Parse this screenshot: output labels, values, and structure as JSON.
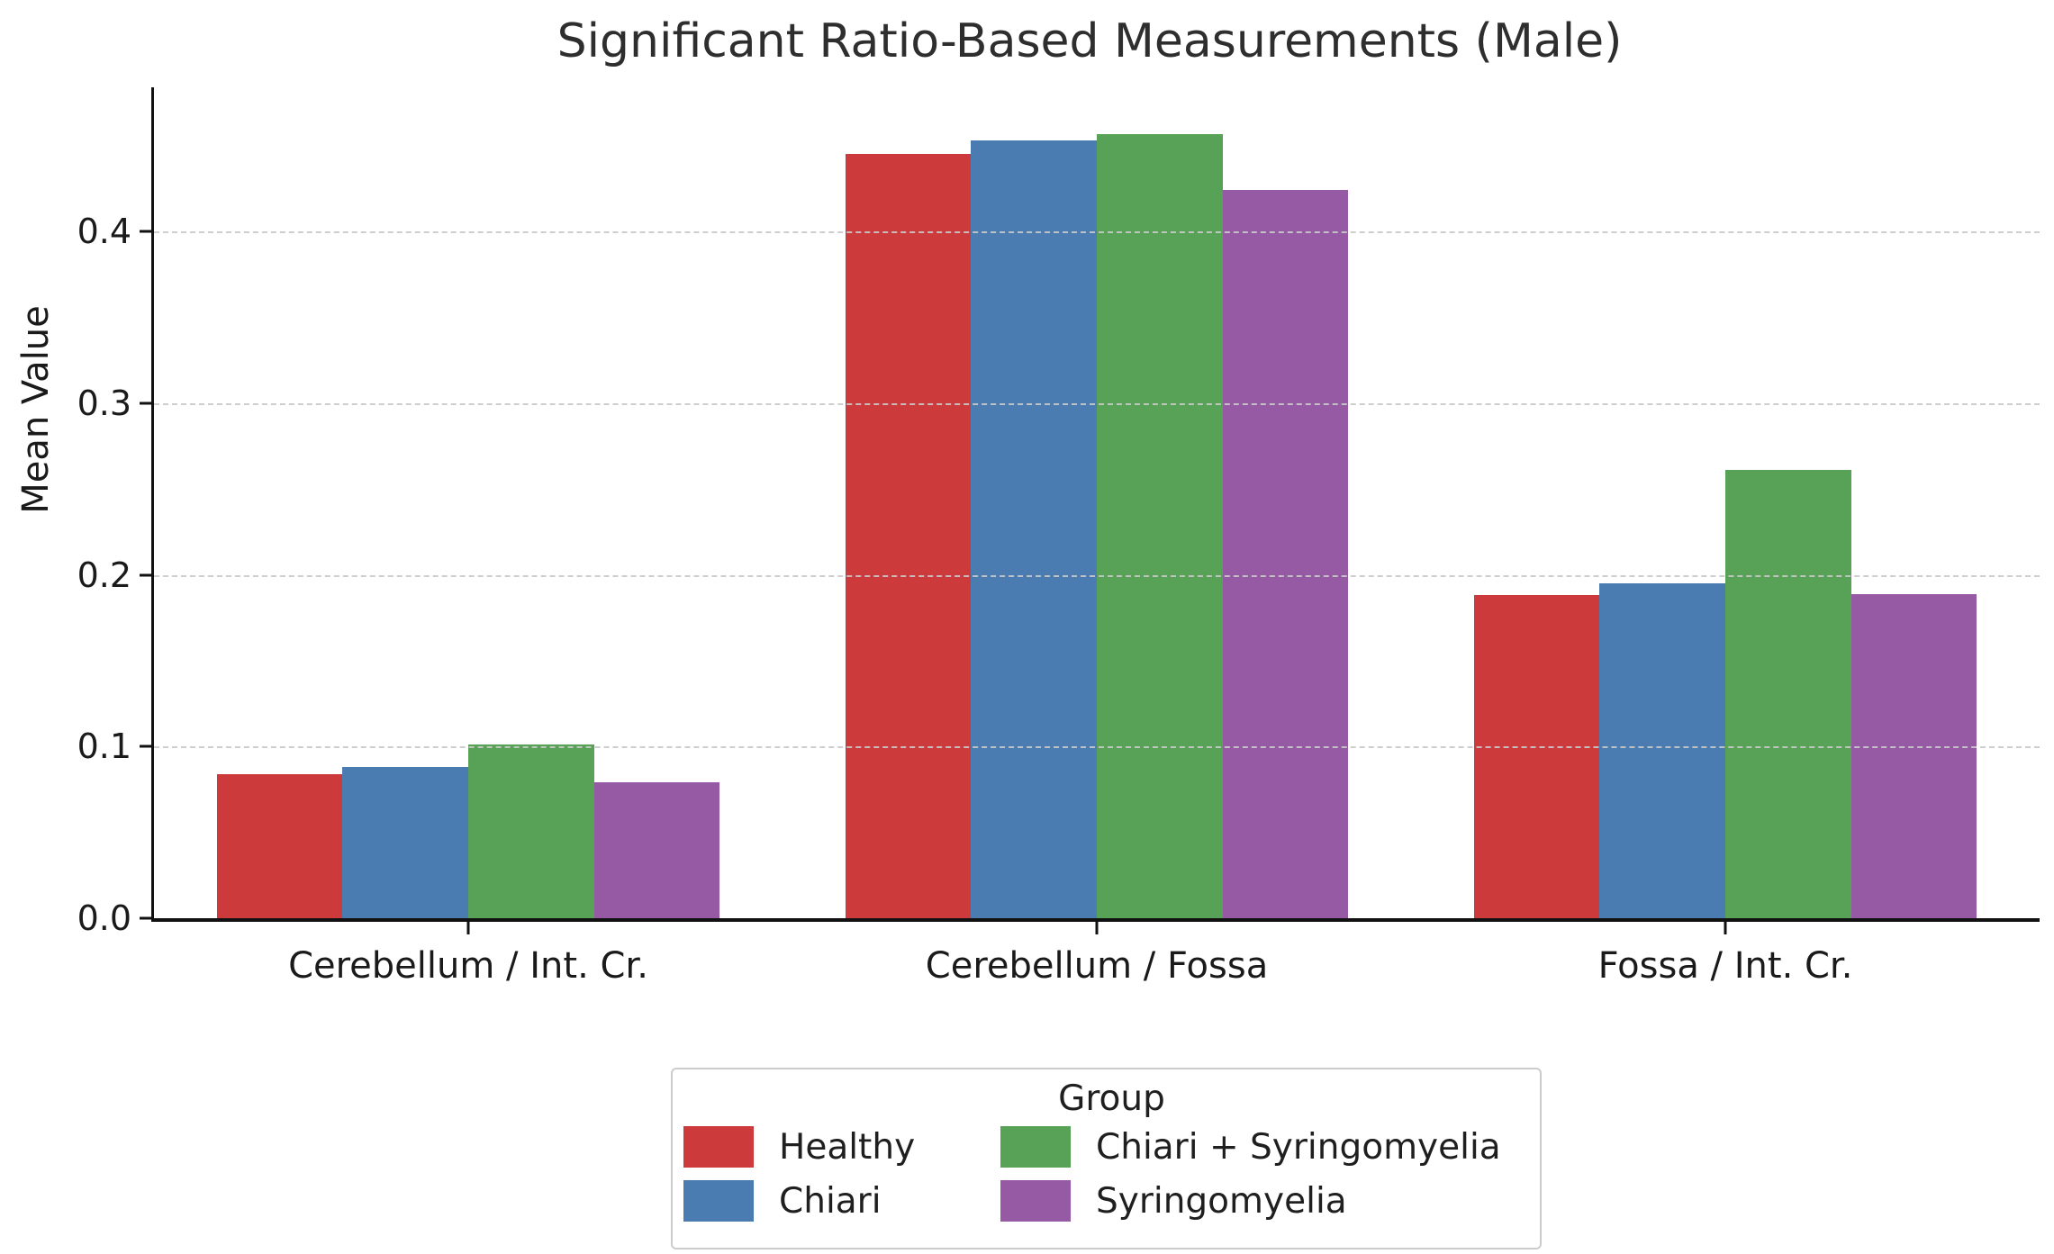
{
  "chart_data": {
    "type": "bar",
    "title": "Significant Ratio-Based Measurements (Male)",
    "xlabel": "",
    "ylabel": "Mean Value",
    "categories": [
      "Cerebellum / Int. Cr.",
      "Cerebellum / Fossa",
      "Fossa / Int. Cr."
    ],
    "series": [
      {
        "name": "Healthy",
        "color": "#cc3a3c",
        "values": [
          0.084,
          0.445,
          0.188
        ]
      },
      {
        "name": "Chiari",
        "color": "#4b7cb1",
        "values": [
          0.088,
          0.453,
          0.195
        ]
      },
      {
        "name": "Chiari + Syringomyelia",
        "color": "#57a257",
        "values": [
          0.101,
          0.457,
          0.261
        ]
      },
      {
        "name": "Syringomyelia",
        "color": "#9659a3",
        "values": [
          0.079,
          0.424,
          0.189
        ]
      }
    ],
    "ylim": [
      0,
      0.484
    ],
    "yticks": [
      0,
      0.1,
      0.2,
      0.3,
      0.4
    ],
    "ytick_labels": [
      "0.0",
      "0.1",
      "0.2",
      "0.3",
      "0.4"
    ],
    "grid": "horizontal-dashed",
    "legend": {
      "title": "Group",
      "position": "below-center",
      "columns": 2
    }
  }
}
